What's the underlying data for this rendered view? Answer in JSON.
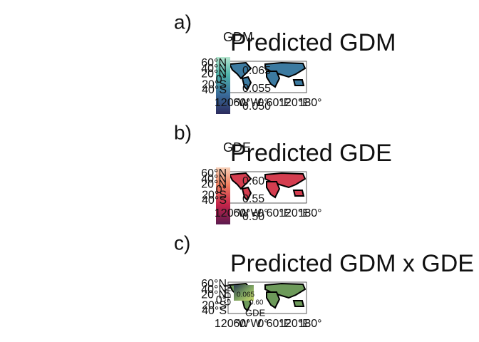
{
  "panels": [
    {
      "label": "a)",
      "title": "Predicted GDM",
      "legend": {
        "title": "GDM",
        "labels": [
          "0.065",
          "0.055",
          "0.050"
        ]
      },
      "lat_labels": [
        "60°N",
        "40°N",
        "20°N",
        "0°",
        "20°S",
        "40°S"
      ],
      "lon_labels": [
        "120°W",
        "60°W",
        "0°",
        "60°E",
        "120°E",
        "180°"
      ]
    },
    {
      "label": "b)",
      "title": "Predicted GDE",
      "legend": {
        "title": "GDE",
        "labels": [
          "0.60",
          "0.55",
          "0.50"
        ]
      },
      "lat_labels": [
        "60°N",
        "40°N",
        "20°N",
        "0°",
        "20°S",
        "40°S"
      ],
      "lon_labels": [
        "120°W",
        "60°W",
        "0°",
        "60°E",
        "120°E",
        "180°"
      ]
    },
    {
      "label": "c)",
      "title": "Predicted GDM x GDE",
      "legend": {
        "title": "GDE",
        "side_title": "GDM",
        "labels": [
          "0.065",
          "0.60"
        ]
      },
      "lat_labels": [
        "60°N",
        "40°N",
        "20°N",
        "0°",
        "20°S",
        "40°S"
      ],
      "lon_labels": [
        "120°W",
        "60°W",
        "0°",
        "60°E",
        "120°E",
        "180°"
      ]
    }
  ]
}
